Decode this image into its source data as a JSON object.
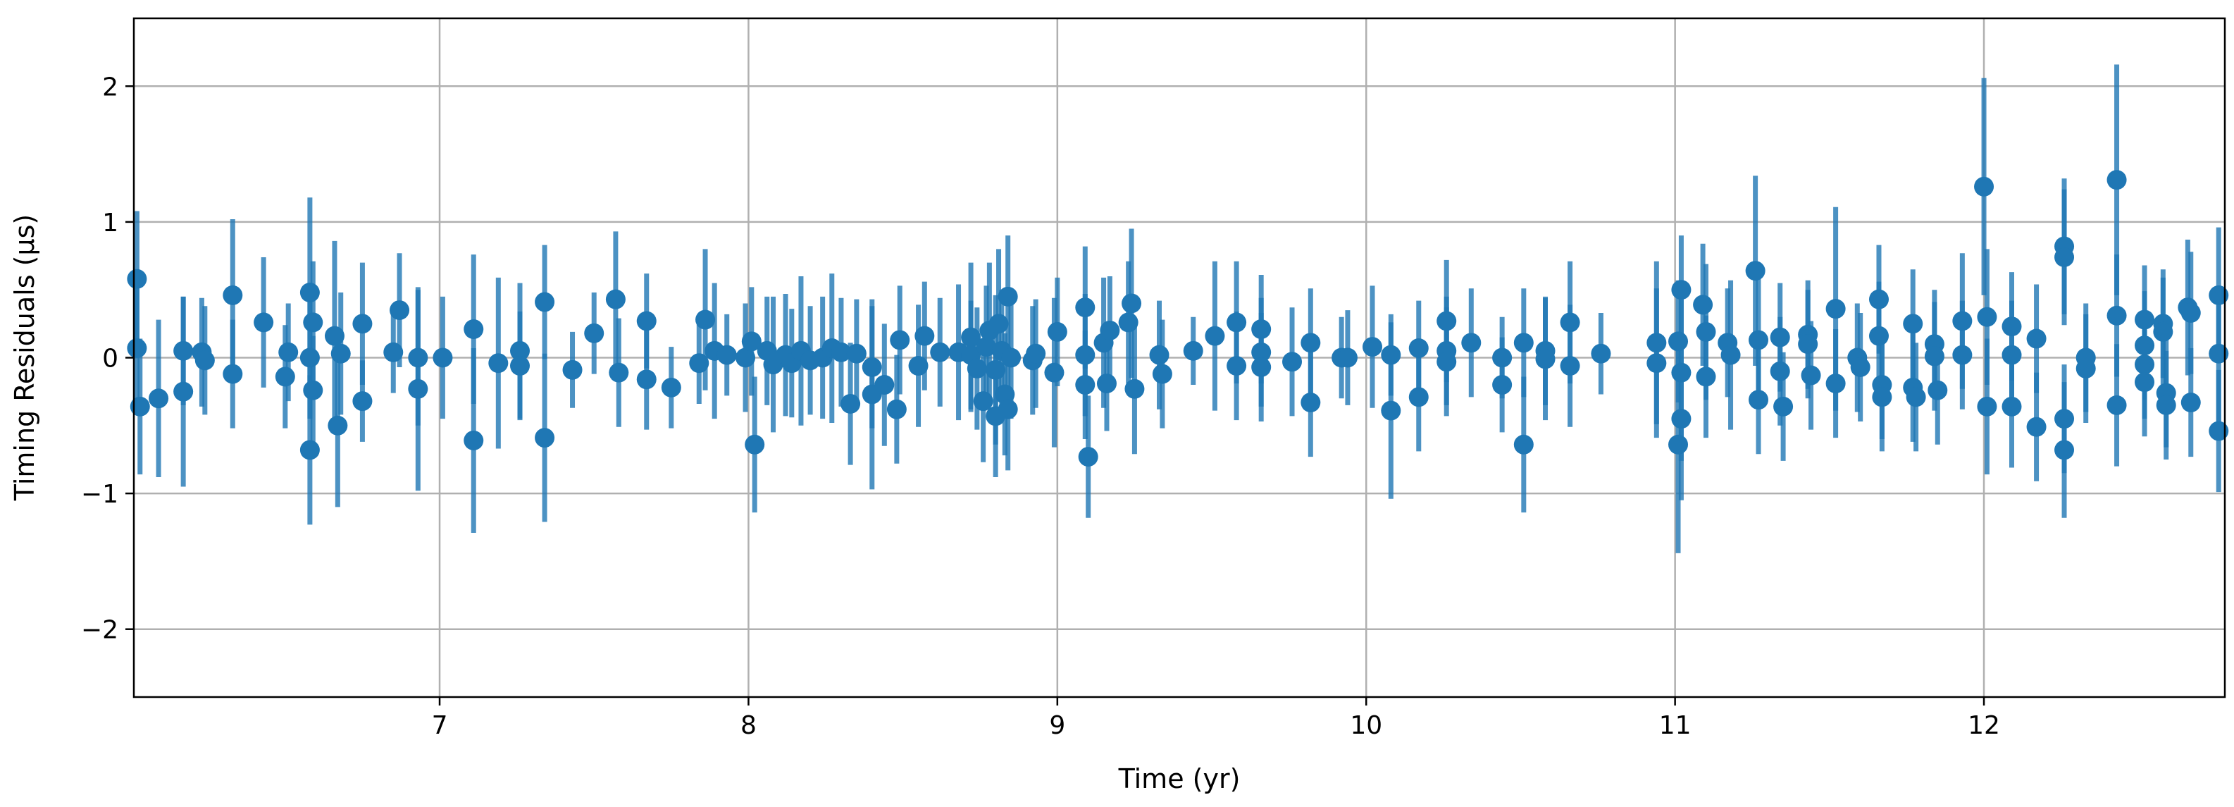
{
  "chart_data": {
    "type": "scatter",
    "style": "errorbar",
    "xlabel": "Time (yr)",
    "ylabel": "Timing Residuals (μs)",
    "xlim": [
      6.01,
      12.78
    ],
    "ylim": [
      -2.5,
      2.5
    ],
    "xticks": [
      7,
      8,
      9,
      10,
      11,
      12
    ],
    "yticks": [
      -2,
      -1,
      0,
      1,
      2
    ],
    "grid": true,
    "color": "#1f77b4",
    "points": [
      {
        "x": 6.02,
        "y": 0.58,
        "err": 0.5
      },
      {
        "x": 6.02,
        "y": 0.07,
        "err": 0.45
      },
      {
        "x": 6.03,
        "y": -0.36,
        "err": 0.5
      },
      {
        "x": 6.09,
        "y": -0.3,
        "err": 0.58
      },
      {
        "x": 6.17,
        "y": -0.25,
        "err": 0.7
      },
      {
        "x": 6.17,
        "y": 0.05,
        "err": 0.4
      },
      {
        "x": 6.23,
        "y": 0.04,
        "err": 0.4
      },
      {
        "x": 6.24,
        "y": -0.02,
        "err": 0.4
      },
      {
        "x": 6.33,
        "y": 0.46,
        "err": 0.56
      },
      {
        "x": 6.33,
        "y": -0.12,
        "err": 0.4
      },
      {
        "x": 6.43,
        "y": 0.26,
        "err": 0.48
      },
      {
        "x": 6.5,
        "y": -0.14,
        "err": 0.38
      },
      {
        "x": 6.51,
        "y": 0.04,
        "err": 0.36
      },
      {
        "x": 6.58,
        "y": 0.48,
        "err": 0.7
      },
      {
        "x": 6.58,
        "y": 0.0,
        "err": 0.45
      },
      {
        "x": 6.58,
        "y": -0.68,
        "err": 0.55
      },
      {
        "x": 6.59,
        "y": 0.26,
        "err": 0.45
      },
      {
        "x": 6.59,
        "y": -0.24,
        "err": 0.4
      },
      {
        "x": 6.66,
        "y": 0.16,
        "err": 0.7
      },
      {
        "x": 6.67,
        "y": -0.5,
        "err": 0.6
      },
      {
        "x": 6.68,
        "y": 0.03,
        "err": 0.45
      },
      {
        "x": 6.75,
        "y": 0.25,
        "err": 0.45
      },
      {
        "x": 6.75,
        "y": -0.32,
        "err": 0.3
      },
      {
        "x": 6.85,
        "y": 0.04,
        "err": 0.3
      },
      {
        "x": 6.87,
        "y": 0.35,
        "err": 0.42
      },
      {
        "x": 6.93,
        "y": 0.0,
        "err": 0.5
      },
      {
        "x": 6.93,
        "y": -0.23,
        "err": 0.75
      },
      {
        "x": 7.01,
        "y": 0.0,
        "err": 0.45
      },
      {
        "x": 7.11,
        "y": 0.21,
        "err": 0.55
      },
      {
        "x": 7.11,
        "y": -0.61,
        "err": 0.68
      },
      {
        "x": 7.19,
        "y": -0.04,
        "err": 0.63
      },
      {
        "x": 7.26,
        "y": 0.05,
        "err": 0.5
      },
      {
        "x": 7.26,
        "y": -0.06,
        "err": 0.4
      },
      {
        "x": 7.34,
        "y": 0.41,
        "err": 0.42
      },
      {
        "x": 7.34,
        "y": -0.59,
        "err": 0.62
      },
      {
        "x": 7.43,
        "y": -0.09,
        "err": 0.28
      },
      {
        "x": 7.5,
        "y": 0.18,
        "err": 0.3
      },
      {
        "x": 7.57,
        "y": 0.43,
        "err": 0.5
      },
      {
        "x": 7.58,
        "y": -0.11,
        "err": 0.4
      },
      {
        "x": 7.67,
        "y": 0.27,
        "err": 0.35
      },
      {
        "x": 7.67,
        "y": -0.16,
        "err": 0.37
      },
      {
        "x": 7.75,
        "y": -0.22,
        "err": 0.3
      },
      {
        "x": 7.84,
        "y": -0.04,
        "err": 0.3
      },
      {
        "x": 7.86,
        "y": 0.28,
        "err": 0.52
      },
      {
        "x": 7.89,
        "y": 0.05,
        "err": 0.5
      },
      {
        "x": 7.93,
        "y": 0.02,
        "err": 0.3
      },
      {
        "x": 7.99,
        "y": 0.0,
        "err": 0.4
      },
      {
        "x": 8.01,
        "y": 0.12,
        "err": 0.4
      },
      {
        "x": 8.02,
        "y": -0.64,
        "err": 0.5
      },
      {
        "x": 8.06,
        "y": 0.05,
        "err": 0.4
      },
      {
        "x": 8.08,
        "y": -0.05,
        "err": 0.5
      },
      {
        "x": 8.12,
        "y": 0.02,
        "err": 0.45
      },
      {
        "x": 8.14,
        "y": -0.04,
        "err": 0.4
      },
      {
        "x": 8.17,
        "y": 0.05,
        "err": 0.55
      },
      {
        "x": 8.2,
        "y": -0.02,
        "err": 0.4
      },
      {
        "x": 8.24,
        "y": 0.0,
        "err": 0.45
      },
      {
        "x": 8.27,
        "y": 0.07,
        "err": 0.55
      },
      {
        "x": 8.3,
        "y": 0.04,
        "err": 0.4
      },
      {
        "x": 8.33,
        "y": -0.34,
        "err": 0.45
      },
      {
        "x": 8.35,
        "y": 0.03,
        "err": 0.4
      },
      {
        "x": 8.4,
        "y": -0.07,
        "err": 0.45
      },
      {
        "x": 8.4,
        "y": -0.27,
        "err": 0.7
      },
      {
        "x": 8.44,
        "y": -0.2,
        "err": 0.45
      },
      {
        "x": 8.48,
        "y": -0.38,
        "err": 0.4
      },
      {
        "x": 8.49,
        "y": 0.13,
        "err": 0.4
      },
      {
        "x": 8.55,
        "y": -0.06,
        "err": 0.45
      },
      {
        "x": 8.57,
        "y": 0.16,
        "err": 0.4
      },
      {
        "x": 8.62,
        "y": 0.04,
        "err": 0.4
      },
      {
        "x": 8.68,
        "y": 0.04,
        "err": 0.5
      },
      {
        "x": 8.72,
        "y": 0.15,
        "err": 0.55
      },
      {
        "x": 8.72,
        "y": 0.02,
        "err": 0.4
      },
      {
        "x": 8.74,
        "y": -0.08,
        "err": 0.45
      },
      {
        "x": 8.76,
        "y": -0.32,
        "err": 0.45
      },
      {
        "x": 8.77,
        "y": 0.08,
        "err": 0.45
      },
      {
        "x": 8.78,
        "y": 0.2,
        "err": 0.5
      },
      {
        "x": 8.8,
        "y": -0.09,
        "err": 0.55
      },
      {
        "x": 8.8,
        "y": -0.43,
        "err": 0.45
      },
      {
        "x": 8.81,
        "y": 0.25,
        "err": 0.55
      },
      {
        "x": 8.82,
        "y": 0.05,
        "err": 0.45
      },
      {
        "x": 8.83,
        "y": -0.27,
        "err": 0.45
      },
      {
        "x": 8.84,
        "y": 0.45,
        "err": 0.45
      },
      {
        "x": 8.84,
        "y": -0.38,
        "err": 0.45
      },
      {
        "x": 8.85,
        "y": 0.0,
        "err": 0.45
      },
      {
        "x": 8.92,
        "y": -0.02,
        "err": 0.4
      },
      {
        "x": 8.93,
        "y": 0.03,
        "err": 0.4
      },
      {
        "x": 8.99,
        "y": -0.11,
        "err": 0.55
      },
      {
        "x": 9.0,
        "y": 0.19,
        "err": 0.4
      },
      {
        "x": 9.09,
        "y": 0.37,
        "err": 0.45
      },
      {
        "x": 9.09,
        "y": 0.02,
        "err": 0.45
      },
      {
        "x": 9.09,
        "y": -0.2,
        "err": 0.4
      },
      {
        "x": 9.1,
        "y": -0.73,
        "err": 0.45
      },
      {
        "x": 9.15,
        "y": 0.11,
        "err": 0.48
      },
      {
        "x": 9.16,
        "y": -0.19,
        "err": 0.35
      },
      {
        "x": 9.17,
        "y": 0.2,
        "err": 0.4
      },
      {
        "x": 9.23,
        "y": 0.26,
        "err": 0.45
      },
      {
        "x": 9.24,
        "y": 0.4,
        "err": 0.55
      },
      {
        "x": 9.25,
        "y": -0.23,
        "err": 0.48
      },
      {
        "x": 9.33,
        "y": 0.02,
        "err": 0.4
      },
      {
        "x": 9.34,
        "y": -0.12,
        "err": 0.4
      },
      {
        "x": 9.44,
        "y": 0.05,
        "err": 0.25
      },
      {
        "x": 9.51,
        "y": 0.16,
        "err": 0.55
      },
      {
        "x": 9.58,
        "y": 0.26,
        "err": 0.45
      },
      {
        "x": 9.58,
        "y": -0.06,
        "err": 0.4
      },
      {
        "x": 9.66,
        "y": 0.21,
        "err": 0.4
      },
      {
        "x": 9.66,
        "y": 0.04,
        "err": 0.4
      },
      {
        "x": 9.66,
        "y": -0.07,
        "err": 0.4
      },
      {
        "x": 9.76,
        "y": -0.03,
        "err": 0.4
      },
      {
        "x": 9.82,
        "y": 0.11,
        "err": 0.4
      },
      {
        "x": 9.82,
        "y": -0.33,
        "err": 0.4
      },
      {
        "x": 9.92,
        "y": 0.0,
        "err": 0.3
      },
      {
        "x": 9.94,
        "y": 0.0,
        "err": 0.35
      },
      {
        "x": 10.02,
        "y": 0.08,
        "err": 0.45
      },
      {
        "x": 10.08,
        "y": 0.02,
        "err": 0.3
      },
      {
        "x": 10.08,
        "y": -0.39,
        "err": 0.65
      },
      {
        "x": 10.17,
        "y": 0.07,
        "err": 0.35
      },
      {
        "x": 10.17,
        "y": -0.29,
        "err": 0.4
      },
      {
        "x": 10.26,
        "y": 0.27,
        "err": 0.45
      },
      {
        "x": 10.26,
        "y": 0.05,
        "err": 0.4
      },
      {
        "x": 10.26,
        "y": -0.03,
        "err": 0.4
      },
      {
        "x": 10.34,
        "y": 0.11,
        "err": 0.4
      },
      {
        "x": 10.44,
        "y": 0.0,
        "err": 0.3
      },
      {
        "x": 10.44,
        "y": -0.2,
        "err": 0.35
      },
      {
        "x": 10.51,
        "y": 0.11,
        "err": 0.4
      },
      {
        "x": 10.51,
        "y": -0.64,
        "err": 0.5
      },
      {
        "x": 10.58,
        "y": 0.05,
        "err": 0.4
      },
      {
        "x": 10.58,
        "y": -0.01,
        "err": 0.45
      },
      {
        "x": 10.66,
        "y": 0.26,
        "err": 0.45
      },
      {
        "x": 10.66,
        "y": -0.06,
        "err": 0.45
      },
      {
        "x": 10.76,
        "y": 0.03,
        "err": 0.3
      },
      {
        "x": 10.94,
        "y": 0.11,
        "err": 0.6
      },
      {
        "x": 10.94,
        "y": -0.04,
        "err": 0.55
      },
      {
        "x": 11.01,
        "y": 0.12,
        "err": 0.45
      },
      {
        "x": 11.01,
        "y": -0.64,
        "err": 0.8
      },
      {
        "x": 11.02,
        "y": 0.5,
        "err": 0.4
      },
      {
        "x": 11.02,
        "y": -0.11,
        "err": 0.65
      },
      {
        "x": 11.02,
        "y": -0.45,
        "err": 0.6
      },
      {
        "x": 11.09,
        "y": 0.39,
        "err": 0.45
      },
      {
        "x": 11.1,
        "y": 0.19,
        "err": 0.5
      },
      {
        "x": 11.1,
        "y": -0.14,
        "err": 0.45
      },
      {
        "x": 11.17,
        "y": 0.11,
        "err": 0.4
      },
      {
        "x": 11.18,
        "y": 0.02,
        "err": 0.55
      },
      {
        "x": 11.26,
        "y": 0.64,
        "err": 0.7
      },
      {
        "x": 11.27,
        "y": 0.13,
        "err": 0.45
      },
      {
        "x": 11.27,
        "y": -0.31,
        "err": 0.4
      },
      {
        "x": 11.34,
        "y": 0.15,
        "err": 0.4
      },
      {
        "x": 11.34,
        "y": -0.1,
        "err": 0.4
      },
      {
        "x": 11.35,
        "y": -0.36,
        "err": 0.4
      },
      {
        "x": 11.43,
        "y": 0.17,
        "err": 0.4
      },
      {
        "x": 11.43,
        "y": 0.1,
        "err": 0.4
      },
      {
        "x": 11.44,
        "y": -0.13,
        "err": 0.4
      },
      {
        "x": 11.52,
        "y": 0.36,
        "err": 0.75
      },
      {
        "x": 11.52,
        "y": -0.19,
        "err": 0.4
      },
      {
        "x": 11.59,
        "y": 0.0,
        "err": 0.4
      },
      {
        "x": 11.6,
        "y": -0.07,
        "err": 0.4
      },
      {
        "x": 11.66,
        "y": 0.43,
        "err": 0.4
      },
      {
        "x": 11.66,
        "y": 0.16,
        "err": 0.4
      },
      {
        "x": 11.67,
        "y": -0.2,
        "err": 0.4
      },
      {
        "x": 11.67,
        "y": -0.29,
        "err": 0.4
      },
      {
        "x": 11.77,
        "y": 0.25,
        "err": 0.4
      },
      {
        "x": 11.77,
        "y": -0.22,
        "err": 0.4
      },
      {
        "x": 11.78,
        "y": -0.29,
        "err": 0.4
      },
      {
        "x": 11.84,
        "y": 0.1,
        "err": 0.4
      },
      {
        "x": 11.84,
        "y": 0.01,
        "err": 0.4
      },
      {
        "x": 11.85,
        "y": -0.24,
        "err": 0.4
      },
      {
        "x": 11.93,
        "y": 0.27,
        "err": 0.5
      },
      {
        "x": 11.93,
        "y": 0.02,
        "err": 0.4
      },
      {
        "x": 12.0,
        "y": 1.26,
        "err": 0.8
      },
      {
        "x": 12.01,
        "y": 0.3,
        "err": 0.5
      },
      {
        "x": 12.01,
        "y": -0.36,
        "err": 0.5
      },
      {
        "x": 12.09,
        "y": 0.23,
        "err": 0.4
      },
      {
        "x": 12.09,
        "y": 0.02,
        "err": 0.4
      },
      {
        "x": 12.09,
        "y": -0.36,
        "err": 0.45
      },
      {
        "x": 12.17,
        "y": 0.14,
        "err": 0.4
      },
      {
        "x": 12.17,
        "y": -0.51,
        "err": 0.4
      },
      {
        "x": 12.26,
        "y": 0.82,
        "err": 0.5
      },
      {
        "x": 12.26,
        "y": 0.74,
        "err": 0.5
      },
      {
        "x": 12.26,
        "y": -0.45,
        "err": 0.4
      },
      {
        "x": 12.26,
        "y": -0.68,
        "err": 0.5
      },
      {
        "x": 12.33,
        "y": 0.0,
        "err": 0.4
      },
      {
        "x": 12.33,
        "y": -0.08,
        "err": 0.4
      },
      {
        "x": 12.43,
        "y": 1.31,
        "err": 0.85
      },
      {
        "x": 12.43,
        "y": 0.31,
        "err": 0.45
      },
      {
        "x": 12.43,
        "y": -0.35,
        "err": 0.45
      },
      {
        "x": 12.52,
        "y": 0.28,
        "err": 0.4
      },
      {
        "x": 12.52,
        "y": 0.09,
        "err": 0.4
      },
      {
        "x": 12.52,
        "y": -0.05,
        "err": 0.4
      },
      {
        "x": 12.52,
        "y": -0.18,
        "err": 0.4
      },
      {
        "x": 12.58,
        "y": 0.25,
        "err": 0.4
      },
      {
        "x": 12.58,
        "y": 0.19,
        "err": 0.4
      },
      {
        "x": 12.59,
        "y": -0.26,
        "err": 0.4
      },
      {
        "x": 12.59,
        "y": -0.35,
        "err": 0.4
      },
      {
        "x": 12.66,
        "y": 0.37,
        "err": 0.5
      },
      {
        "x": 12.67,
        "y": 0.33,
        "err": 0.45
      },
      {
        "x": 12.67,
        "y": -0.33,
        "err": 0.4
      },
      {
        "x": 12.76,
        "y": 0.46,
        "err": 0.5
      },
      {
        "x": 12.76,
        "y": 0.03,
        "err": 0.5
      },
      {
        "x": 12.76,
        "y": -0.54,
        "err": 0.45
      }
    ]
  }
}
